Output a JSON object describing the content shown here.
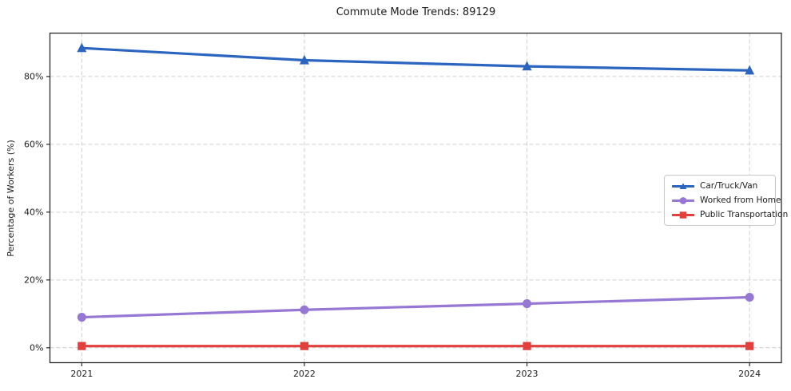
{
  "chart_data": {
    "type": "line",
    "title": "Commute Mode Trends: 89129",
    "xlabel": "",
    "ylabel": "Percentage of Workers (%)",
    "x": [
      2021,
      2022,
      2023,
      2024
    ],
    "x_tick_labels": [
      "2021",
      "2022",
      "2023",
      "2024"
    ],
    "yticks": [
      0,
      20,
      40,
      60,
      80
    ],
    "ytick_labels": [
      "0%",
      "20%",
      "40%",
      "60%",
      "80%"
    ],
    "xlim": [
      2020.857,
      2024.143
    ],
    "ylim": [
      -4.4,
      92.8
    ],
    "grid": true,
    "grid_style": "dashed",
    "legend_position": "center-right",
    "background_color": "#ffffff",
    "series": [
      {
        "name": "Car/Truck/Van",
        "color": "#2b65c0",
        "marker": "triangle",
        "values": [
          88.4,
          84.8,
          83.0,
          81.8
        ]
      },
      {
        "name": "Worked from Home",
        "color": "#9677d3",
        "marker": "circle",
        "values": [
          9.0,
          11.2,
          13.0,
          14.9
        ]
      },
      {
        "name": "Public Transportation",
        "color": "#e2403d",
        "marker": "square",
        "values": [
          0.5,
          0.5,
          0.5,
          0.5
        ]
      }
    ]
  }
}
